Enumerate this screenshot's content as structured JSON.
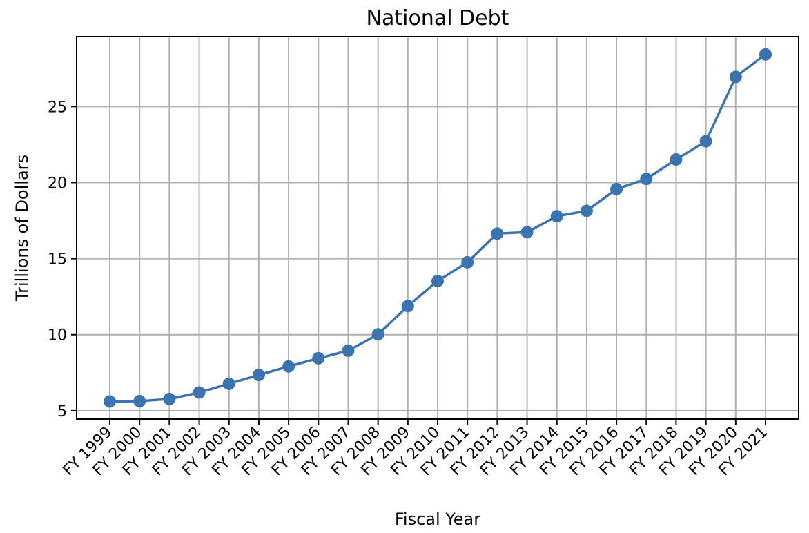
{
  "chart_data": {
    "type": "line",
    "title": "National Debt",
    "xlabel": "Fiscal Year",
    "ylabel": "Trillions of Dollars",
    "categories": [
      "FY 1999",
      "FY 2000",
      "FY 2001",
      "FY 2002",
      "FY 2003",
      "FY 2004",
      "FY 2005",
      "FY 2006",
      "FY 2007",
      "FY 2008",
      "FY 2009",
      "FY 2010",
      "FY 2011",
      "FY 2012",
      "FY 2013",
      "FY 2014",
      "FY 2015",
      "FY 2016",
      "FY 2017",
      "FY 2018",
      "FY 2019",
      "FY 2020",
      "FY 2021"
    ],
    "series": [
      {
        "values": [
          5.61,
          5.63,
          5.77,
          6.2,
          6.77,
          7.35,
          7.91,
          8.45,
          8.95,
          10.02,
          11.88,
          13.53,
          14.76,
          16.65,
          16.74,
          17.79,
          18.14,
          19.57,
          20.24,
          21.52,
          22.72,
          26.95,
          28.43
        ],
        "color": "#3a73b0"
      }
    ],
    "yticks": [
      5,
      10,
      15,
      20,
      25
    ],
    "ylim": [
      4.45,
      29.6
    ],
    "grid": true,
    "legend": "none"
  }
}
